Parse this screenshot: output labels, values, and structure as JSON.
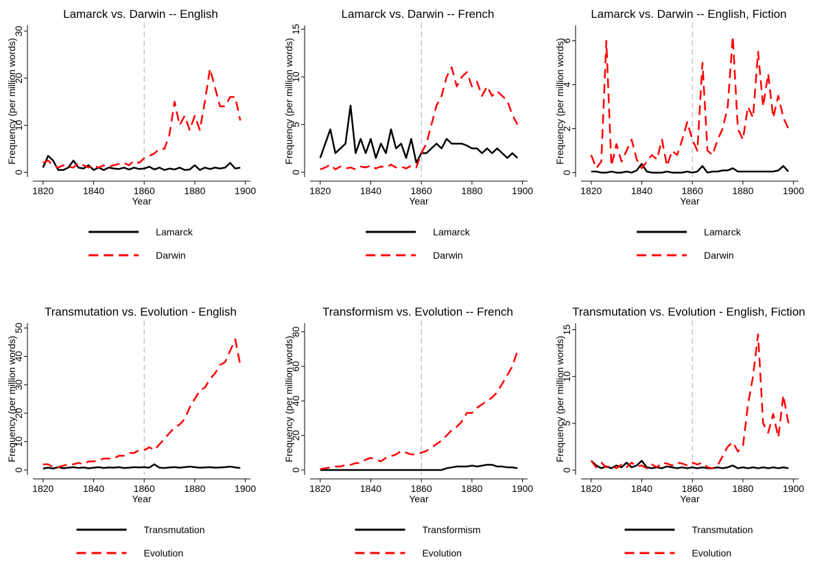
{
  "chart_data": [
    {
      "type": "line",
      "title": "Lamarck vs. Darwin -- English",
      "x_label": "Year",
      "y_label": "Frequency (per million words)",
      "x": [
        1820,
        1822,
        1824,
        1826,
        1828,
        1830,
        1832,
        1834,
        1836,
        1838,
        1840,
        1842,
        1844,
        1846,
        1848,
        1850,
        1852,
        1854,
        1856,
        1858,
        1860,
        1862,
        1864,
        1866,
        1868,
        1870,
        1872,
        1874,
        1876,
        1878,
        1880,
        1882,
        1884,
        1886,
        1888,
        1890,
        1892,
        1894,
        1896,
        1898
      ],
      "xlim": [
        1816,
        1902
      ],
      "xticks": [
        1820,
        1840,
        1860,
        1880,
        1900
      ],
      "ylim": [
        -1,
        31.2
      ],
      "yticks": [
        0,
        10,
        20,
        30
      ],
      "vline": 1860,
      "series": [
        {
          "name": "Lamarck",
          "color": "#000000",
          "line_style": "solid",
          "values": [
            1,
            3.5,
            2.5,
            0.5,
            0.5,
            1,
            2.5,
            1,
            0.8,
            1.5,
            0.5,
            1,
            0.5,
            1,
            0.8,
            0.7,
            1,
            0.6,
            1,
            0.7,
            0.8,
            1.2,
            0.6,
            1,
            0.5,
            0.8,
            0.6,
            1,
            0.5,
            0.6,
            1.5,
            0.5,
            1,
            0.7,
            1,
            0.8,
            1,
            2,
            0.8,
            1
          ]
        },
        {
          "name": "Darwin",
          "color": "#ff0000",
          "line_style": "dashed",
          "values": [
            2,
            2.5,
            1.5,
            1,
            1.5,
            1.2,
            1,
            2,
            1.5,
            1,
            1.5,
            1,
            1.5,
            1.2,
            1.5,
            1.8,
            2,
            1.5,
            2.5,
            2,
            3,
            3.5,
            4,
            5,
            5,
            8,
            15,
            10,
            12,
            9,
            12,
            9,
            15,
            22,
            18,
            14,
            14,
            16,
            16,
            11
          ]
        }
      ]
    },
    {
      "type": "line",
      "title": "Lamarck vs. Darwin -- French",
      "x_label": "Year",
      "y_label": "Frequency (per million words)",
      "x": [
        1820,
        1822,
        1824,
        1826,
        1828,
        1830,
        1832,
        1834,
        1836,
        1838,
        1840,
        1842,
        1844,
        1846,
        1848,
        1850,
        1852,
        1854,
        1856,
        1858,
        1860,
        1862,
        1864,
        1866,
        1868,
        1870,
        1872,
        1874,
        1876,
        1878,
        1880,
        1882,
        1884,
        1886,
        1888,
        1890,
        1892,
        1894,
        1896,
        1898
      ],
      "xlim": [
        1816,
        1902
      ],
      "xticks": [
        1820,
        1840,
        1860,
        1880,
        1900
      ],
      "ylim": [
        -0.5,
        15.4
      ],
      "yticks": [
        0,
        5,
        10,
        15
      ],
      "vline": 1860,
      "series": [
        {
          "name": "Lamarck",
          "color": "#000000",
          "line_style": "solid",
          "values": [
            1.5,
            3,
            4.5,
            2,
            2.5,
            3,
            7,
            2,
            3.5,
            2,
            3.5,
            1.5,
            3,
            2,
            4.5,
            2.5,
            3,
            1.5,
            3.5,
            1,
            2,
            2,
            2.5,
            3,
            2.5,
            3.5,
            3,
            3,
            3,
            2.8,
            2.5,
            2.5,
            2,
            2.5,
            2,
            2.5,
            2,
            1.5,
            2,
            1.5
          ]
        },
        {
          "name": "Darwin",
          "color": "#ff0000",
          "line_style": "dashed",
          "values": [
            0.3,
            0.5,
            0.8,
            0.3,
            0.6,
            0.4,
            0.5,
            0.3,
            0.6,
            0.5,
            0.7,
            0.4,
            0.6,
            0.5,
            0.8,
            0.5,
            0.6,
            0.4,
            0.7,
            0.5,
            2,
            3,
            5,
            7,
            8,
            10,
            11,
            9,
            10,
            10.5,
            9,
            9.5,
            8,
            9,
            8,
            8.5,
            8,
            7.5,
            6,
            5
          ]
        }
      ]
    },
    {
      "type": "line",
      "title": "Lamarck vs. Darwin -- English, Fiction",
      "x_label": "Year",
      "y_label": "Frequency (per million words)",
      "x": [
        1820,
        1822,
        1824,
        1826,
        1828,
        1830,
        1832,
        1834,
        1836,
        1838,
        1840,
        1842,
        1844,
        1846,
        1848,
        1850,
        1852,
        1854,
        1856,
        1858,
        1860,
        1862,
        1864,
        1866,
        1868,
        1870,
        1872,
        1874,
        1876,
        1878,
        1880,
        1882,
        1884,
        1886,
        1888,
        1890,
        1892,
        1894,
        1896,
        1898
      ],
      "xlim": [
        1816,
        1902
      ],
      "xticks": [
        1820,
        1840,
        1860,
        1880,
        1900
      ],
      "ylim": [
        -0.2,
        6.7
      ],
      "yticks": [
        0,
        2,
        4,
        6
      ],
      "vline": 1860,
      "series": [
        {
          "name": "Lamarck",
          "color": "#000000",
          "line_style": "solid",
          "values": [
            0.05,
            0.05,
            0,
            0,
            0.05,
            0,
            0,
            0.05,
            0,
            0.1,
            0.4,
            0.05,
            0,
            0,
            0,
            0.05,
            0,
            0,
            0,
            0.05,
            0,
            0.05,
            0.3,
            0,
            0.05,
            0.05,
            0.1,
            0.1,
            0.2,
            0.05,
            0.05,
            0.05,
            0.05,
            0.05,
            0.05,
            0.05,
            0.05,
            0.1,
            0.3,
            0.05
          ]
        },
        {
          "name": "Darwin",
          "color": "#ff0000",
          "line_style": "dashed",
          "values": [
            0.8,
            0.2,
            0.5,
            6,
            0.3,
            1.3,
            0.5,
            1,
            1.5,
            0.6,
            0.2,
            0.5,
            0.8,
            0.6,
            1.5,
            0.3,
            1,
            0.8,
            1.5,
            2.3,
            1.5,
            1,
            5,
            1,
            0.8,
            1.5,
            2,
            3,
            6.2,
            2,
            1.5,
            3,
            2.5,
            5.5,
            3,
            4.5,
            2.5,
            3.5,
            2.5,
            2
          ]
        }
      ]
    },
    {
      "type": "line",
      "title": "Transmutation vs. Evolution - English",
      "x_label": "Year",
      "y_label": "Frequency (per million words)",
      "x": [
        1820,
        1822,
        1824,
        1826,
        1828,
        1830,
        1832,
        1834,
        1836,
        1838,
        1840,
        1842,
        1844,
        1846,
        1848,
        1850,
        1852,
        1854,
        1856,
        1858,
        1860,
        1862,
        1864,
        1866,
        1868,
        1870,
        1872,
        1874,
        1876,
        1878,
        1880,
        1882,
        1884,
        1886,
        1888,
        1890,
        1892,
        1894,
        1896,
        1898
      ],
      "xlim": [
        1816,
        1902
      ],
      "xticks": [
        1820,
        1840,
        1860,
        1880,
        1900
      ],
      "ylim": [
        -1.7,
        51.7
      ],
      "yticks": [
        0,
        10,
        20,
        30,
        40,
        50
      ],
      "vline": 1860,
      "series": [
        {
          "name": "Transmutation",
          "color": "#000000",
          "line_style": "solid",
          "values": [
            0.5,
            0.8,
            0.5,
            1,
            0.6,
            0.8,
            1,
            0.7,
            0.9,
            0.6,
            0.8,
            1,
            0.7,
            0.9,
            0.8,
            1,
            0.7,
            0.8,
            1,
            0.9,
            1,
            0.8,
            2,
            0.8,
            0.7,
            0.9,
            1,
            0.8,
            1,
            1.2,
            1,
            0.8,
            0.9,
            1,
            0.8,
            0.9,
            1,
            1.2,
            0.9,
            0.7
          ]
        },
        {
          "name": "Evolution",
          "color": "#ff0000",
          "line_style": "dashed",
          "values": [
            2,
            2,
            1,
            1,
            1.5,
            2,
            2,
            2.5,
            2,
            3,
            3,
            3.5,
            4,
            4,
            4,
            5,
            5,
            6,
            6,
            7,
            7,
            8,
            7,
            9,
            11,
            13,
            15,
            16,
            18,
            22,
            25,
            28,
            29,
            32,
            34,
            37,
            38,
            42,
            46,
            37
          ]
        }
      ]
    },
    {
      "type": "line",
      "title": "Transformism vs. Evolution -- French",
      "x_label": "Year",
      "y_label": "Frequency (per million words)",
      "x": [
        1820,
        1822,
        1824,
        1826,
        1828,
        1830,
        1832,
        1834,
        1836,
        1838,
        1840,
        1842,
        1844,
        1846,
        1848,
        1850,
        1852,
        1854,
        1856,
        1858,
        1860,
        1862,
        1864,
        1866,
        1868,
        1870,
        1872,
        1874,
        1876,
        1878,
        1880,
        1882,
        1884,
        1886,
        1888,
        1890,
        1892,
        1894,
        1896,
        1898
      ],
      "xlim": [
        1816,
        1902
      ],
      "xticks": [
        1820,
        1840,
        1860,
        1880,
        1900
      ],
      "ylim": [
        -2.8,
        85
      ],
      "yticks": [
        0,
        20,
        40,
        60,
        80
      ],
      "vline": 1860,
      "series": [
        {
          "name": "Transformism",
          "color": "#000000",
          "line_style": "solid",
          "values": [
            0,
            0,
            0,
            0,
            0,
            0,
            0,
            0,
            0,
            0,
            0,
            0,
            0,
            0,
            0,
            0,
            0,
            0,
            0,
            0,
            0,
            0,
            0,
            0,
            0,
            1,
            1.5,
            2,
            2,
            2,
            2.5,
            2,
            2.5,
            3,
            3,
            2,
            2,
            1.5,
            1.5,
            1
          ]
        },
        {
          "name": "Evolution",
          "color": "#ff0000",
          "line_style": "dashed",
          "values": [
            0.5,
            1,
            1.5,
            2,
            2,
            3,
            3,
            4,
            4,
            6,
            7,
            6,
            5,
            7,
            8,
            9,
            11,
            10,
            9,
            9,
            10,
            11,
            13,
            15,
            17,
            20,
            23,
            25,
            28,
            33,
            33,
            36,
            38,
            40,
            42,
            45,
            50,
            55,
            60,
            69
          ]
        }
      ]
    },
    {
      "type": "line",
      "title": "Transmutation vs. Evolution - English, Fiction",
      "x_label": "Year",
      "y_label": "Frequency (per million words)",
      "x": [
        1820,
        1822,
        1824,
        1826,
        1828,
        1830,
        1832,
        1834,
        1836,
        1838,
        1840,
        1842,
        1844,
        1846,
        1848,
        1850,
        1852,
        1854,
        1856,
        1858,
        1860,
        1862,
        1864,
        1866,
        1868,
        1870,
        1872,
        1874,
        1876,
        1878,
        1880,
        1882,
        1884,
        1886,
        1888,
        1890,
        1892,
        1894,
        1896,
        1898
      ],
      "xlim": [
        1816,
        1902
      ],
      "xticks": [
        1820,
        1840,
        1860,
        1880,
        1900
      ],
      "ylim": [
        -0.5,
        15.7
      ],
      "yticks": [
        0,
        5,
        10,
        15
      ],
      "vline": 1860,
      "series": [
        {
          "name": "Transmutation",
          "color": "#000000",
          "line_style": "solid",
          "values": [
            1,
            0.5,
            0.2,
            0.4,
            0.2,
            0.5,
            0.3,
            0.8,
            0.3,
            0.5,
            1,
            0.3,
            0.2,
            0.3,
            0.2,
            0.4,
            0.3,
            0.2,
            0.3,
            0.2,
            0.3,
            0.2,
            0.3,
            0.2,
            0.2,
            0.3,
            0.2,
            0.3,
            0.5,
            0.2,
            0.3,
            0.2,
            0.3,
            0.2,
            0.3,
            0.2,
            0.3,
            0.2,
            0.3,
            0.2
          ]
        },
        {
          "name": "Evolution",
          "color": "#ff0000",
          "line_style": "dashed",
          "values": [
            1,
            0.3,
            0.8,
            0.3,
            0.5,
            0.2,
            0.6,
            0.3,
            0.8,
            0.4,
            0.5,
            0.2,
            0.6,
            0.3,
            0.8,
            0.7,
            0.5,
            0.8,
            0.7,
            0.5,
            0.8,
            0.6,
            0.8,
            0.3,
            0.2,
            0.5,
            1.5,
            2.5,
            3,
            2,
            2.5,
            7,
            10,
            14.5,
            5,
            4,
            6,
            3.5,
            8,
            5
          ]
        }
      ]
    }
  ]
}
